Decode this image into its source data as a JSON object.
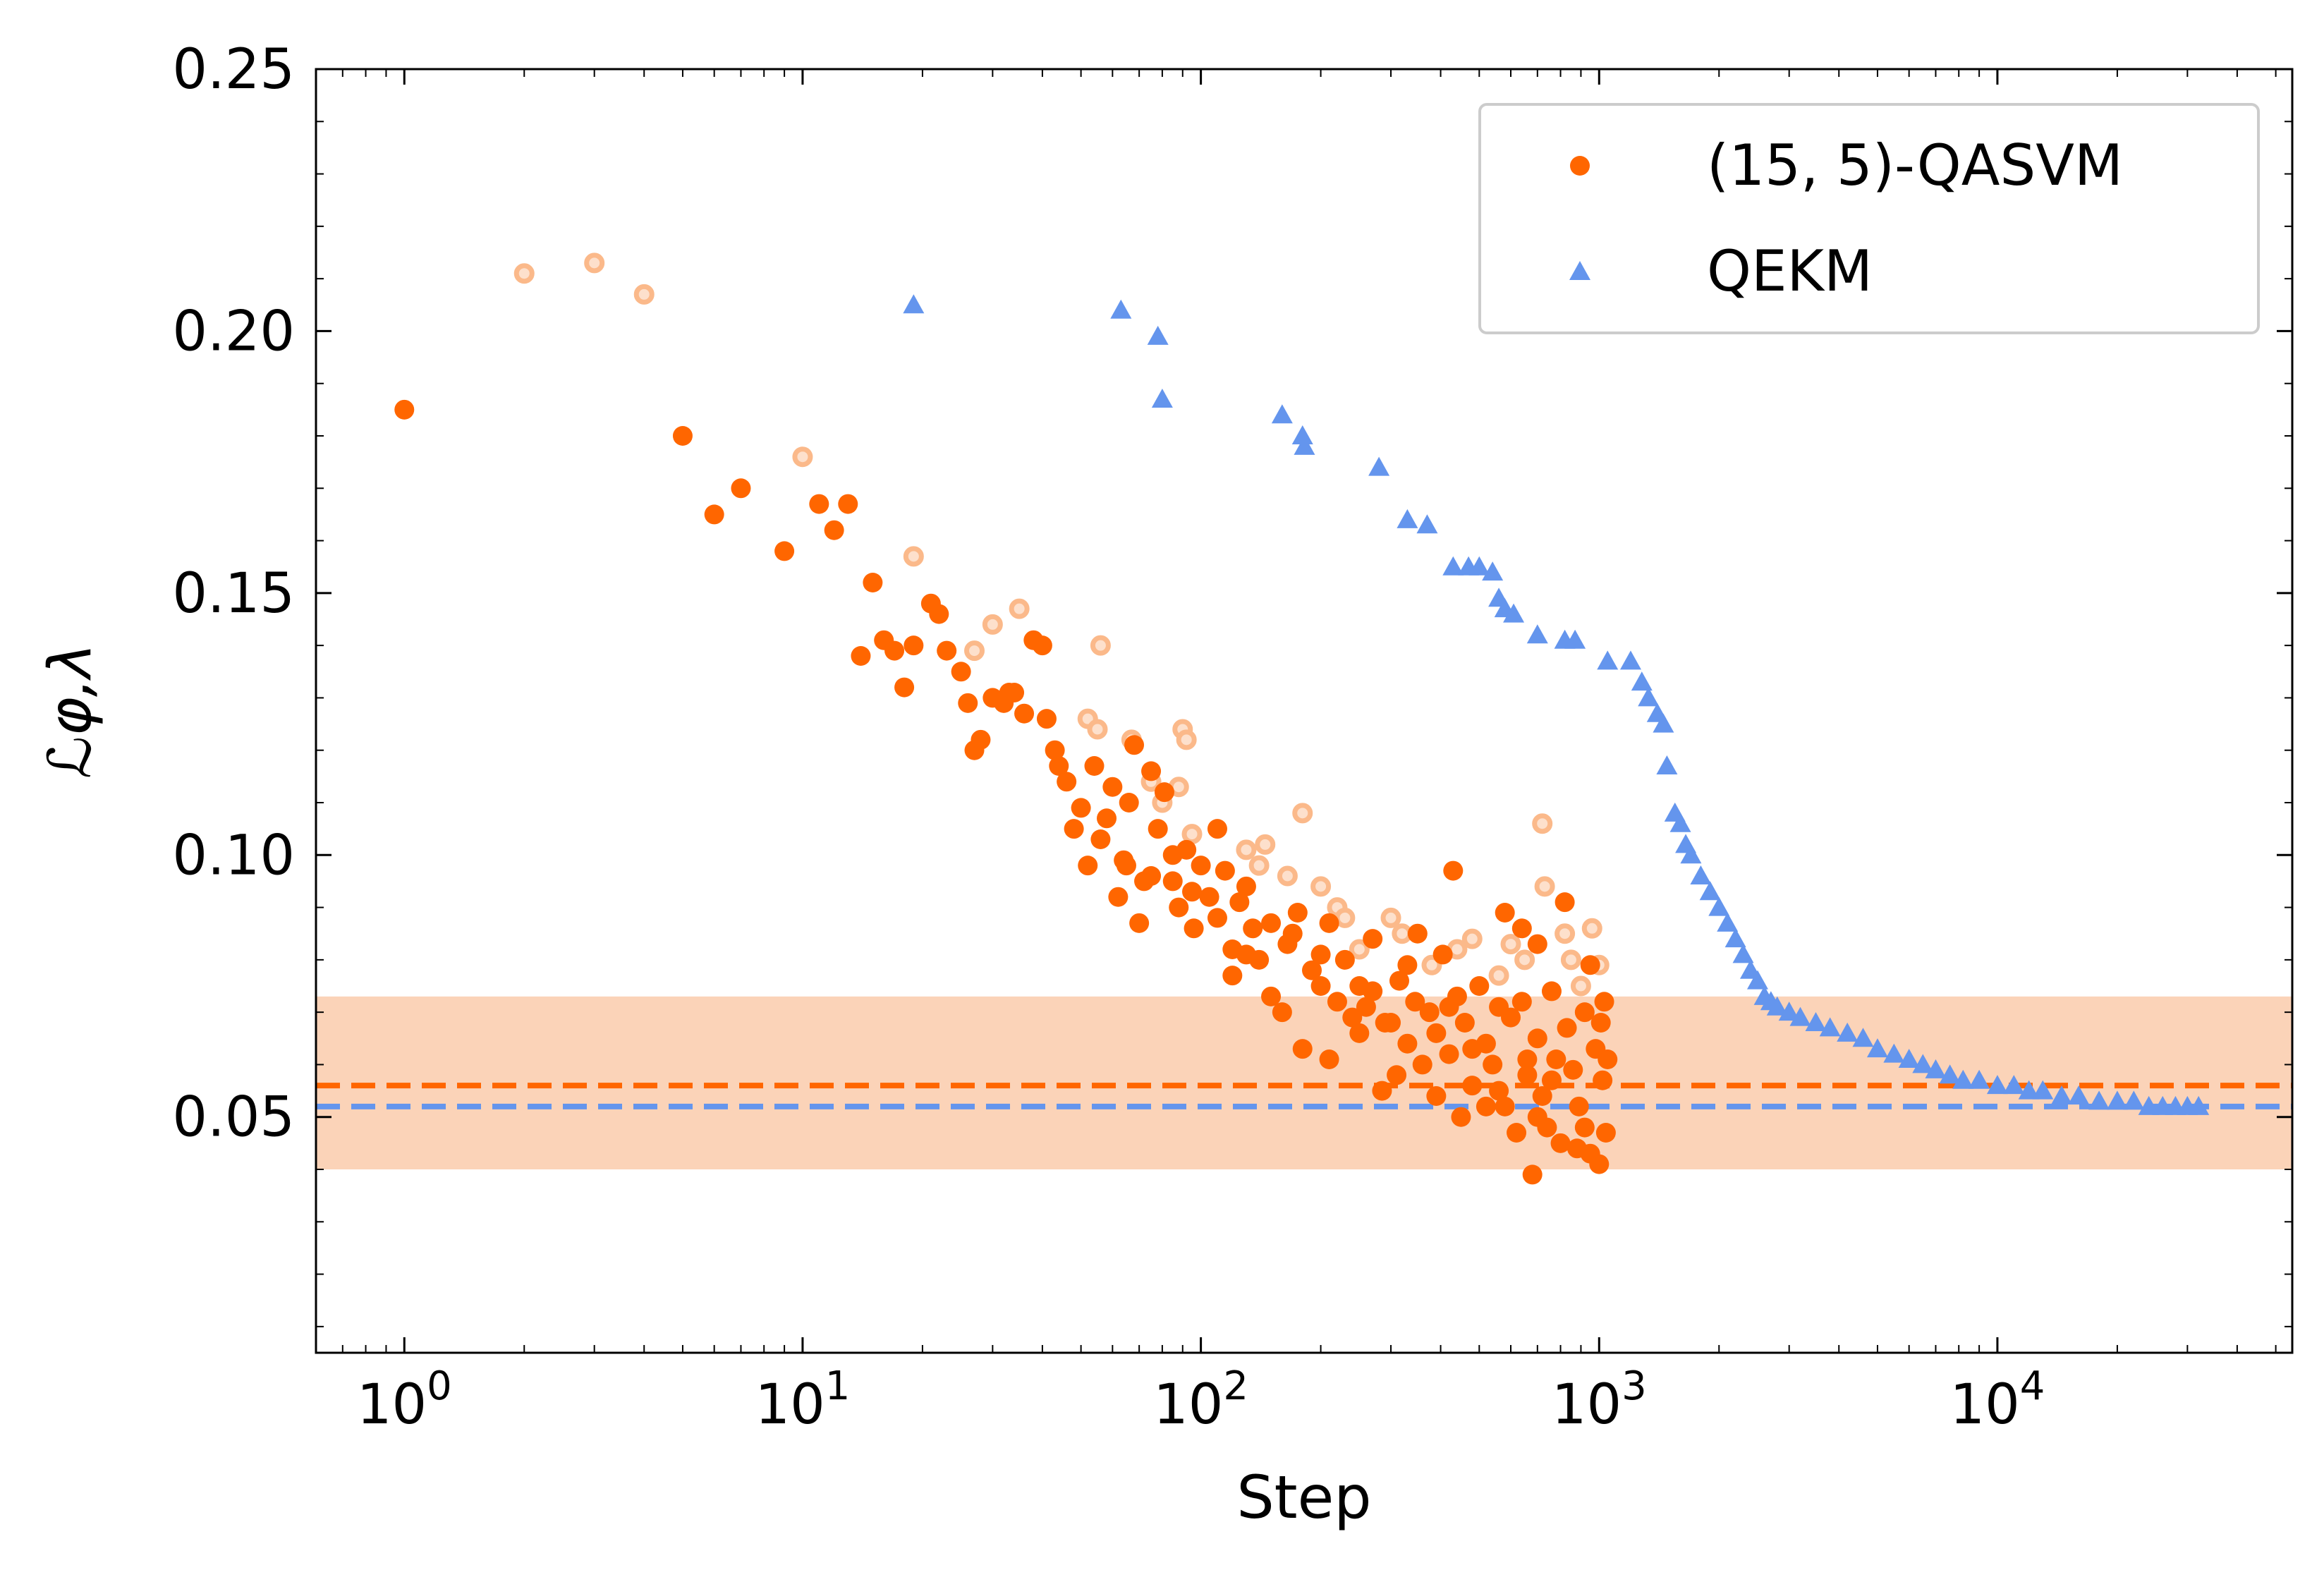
{
  "chart_data": {
    "type": "scatter",
    "title": "",
    "xlabel": "Step",
    "ylabel": "ℒφ,λ",
    "xscale": "log",
    "xlim": [
      0.6,
      55000
    ],
    "ylim": [
      0.005,
      0.25
    ],
    "grid": false,
    "legend_position": "top-right",
    "yticks": [
      {
        "value": 0.05,
        "label": "0.05"
      },
      {
        "value": 0.1,
        "label": "0.10"
      },
      {
        "value": 0.15,
        "label": "0.15"
      },
      {
        "value": 0.2,
        "label": "0.20"
      },
      {
        "value": 0.25,
        "label": "0.25"
      }
    ],
    "xticks": [
      {
        "value": 1,
        "base": "10",
        "exp": "0"
      },
      {
        "value": 10,
        "base": "10",
        "exp": "1"
      },
      {
        "value": 100,
        "base": "10",
        "exp": "2"
      },
      {
        "value": 1000,
        "base": "10",
        "exp": "3"
      },
      {
        "value": 10000,
        "base": "10",
        "exp": "4"
      }
    ],
    "band": {
      "y0": 0.04,
      "y1": 0.073,
      "color": "#fbd3b8"
    },
    "hlines": [
      {
        "y": 0.056,
        "color": "#ff6600",
        "style": "dashed"
      },
      {
        "y": 0.052,
        "color": "#6495ed",
        "style": "dashed"
      }
    ],
    "series": [
      {
        "name": "(15, 5)-QASVM",
        "marker": "circle",
        "color": "#ff6600",
        "points": [
          [
            1,
            0.185
          ],
          [
            5,
            0.18
          ],
          [
            6,
            0.165
          ],
          [
            7,
            0.17
          ],
          [
            9,
            0.158
          ],
          [
            11,
            0.167
          ],
          [
            12,
            0.162
          ],
          [
            13,
            0.167
          ],
          [
            14,
            0.138
          ],
          [
            15,
            0.152
          ],
          [
            16,
            0.141
          ],
          [
            17,
            0.139
          ],
          [
            18,
            0.132
          ],
          [
            19,
            0.14
          ],
          [
            21,
            0.148
          ],
          [
            22,
            0.146
          ],
          [
            23,
            0.139
          ],
          [
            25,
            0.135
          ],
          [
            26,
            0.129
          ],
          [
            27,
            0.12
          ],
          [
            28,
            0.122
          ],
          [
            30,
            0.13
          ],
          [
            32,
            0.129
          ],
          [
            33,
            0.131
          ],
          [
            34,
            0.131
          ],
          [
            36,
            0.127
          ],
          [
            38,
            0.141
          ],
          [
            40,
            0.14
          ],
          [
            41,
            0.126
          ],
          [
            43,
            0.12
          ],
          [
            44,
            0.117
          ],
          [
            46,
            0.114
          ],
          [
            48,
            0.105
          ],
          [
            50,
            0.109
          ],
          [
            52,
            0.098
          ],
          [
            54,
            0.117
          ],
          [
            56,
            0.103
          ],
          [
            58,
            0.107
          ],
          [
            60,
            0.113
          ],
          [
            62,
            0.092
          ],
          [
            64,
            0.099
          ],
          [
            66,
            0.11
          ],
          [
            68,
            0.121
          ],
          [
            70,
            0.087
          ],
          [
            72,
            0.095
          ],
          [
            75,
            0.116
          ],
          [
            78,
            0.105
          ],
          [
            81,
            0.112
          ],
          [
            85,
            0.095
          ],
          [
            88,
            0.09
          ],
          [
            92,
            0.101
          ],
          [
            96,
            0.086
          ],
          [
            100,
            0.098
          ],
          [
            105,
            0.092
          ],
          [
            110,
            0.105
          ],
          [
            115,
            0.097
          ],
          [
            120,
            0.082
          ],
          [
            125,
            0.091
          ],
          [
            130,
            0.094
          ],
          [
            140,
            0.08
          ],
          [
            150,
            0.087
          ],
          [
            160,
            0.07
          ],
          [
            170,
            0.085
          ],
          [
            180,
            0.063
          ],
          [
            190,
            0.078
          ],
          [
            200,
            0.075
          ],
          [
            210,
            0.061
          ],
          [
            220,
            0.072
          ],
          [
            230,
            0.08
          ],
          [
            240,
            0.069
          ],
          [
            250,
            0.066
          ],
          [
            260,
            0.071
          ],
          [
            270,
            0.074
          ],
          [
            285,
            0.055
          ],
          [
            300,
            0.068
          ],
          [
            315,
            0.076
          ],
          [
            330,
            0.064
          ],
          [
            345,
            0.072
          ],
          [
            360,
            0.06
          ],
          [
            375,
            0.07
          ],
          [
            390,
            0.066
          ],
          [
            405,
            0.081
          ],
          [
            420,
            0.062
          ],
          [
            440,
            0.073
          ],
          [
            460,
            0.068
          ],
          [
            480,
            0.056
          ],
          [
            500,
            0.075
          ],
          [
            520,
            0.064
          ],
          [
            540,
            0.06
          ],
          [
            560,
            0.071
          ],
          [
            580,
            0.052
          ],
          [
            600,
            0.069
          ],
          [
            620,
            0.047
          ],
          [
            640,
            0.072
          ],
          [
            660,
            0.058
          ],
          [
            680,
            0.039
          ],
          [
            700,
            0.065
          ],
          [
            720,
            0.054
          ],
          [
            740,
            0.048
          ],
          [
            760,
            0.074
          ],
          [
            780,
            0.061
          ],
          [
            800,
            0.045
          ],
          [
            830,
            0.067
          ],
          [
            860,
            0.059
          ],
          [
            890,
            0.052
          ],
          [
            920,
            0.07
          ],
          [
            950,
            0.043
          ],
          [
            980,
            0.063
          ],
          [
            1000,
            0.041
          ],
          [
            1010,
            0.068
          ],
          [
            1020,
            0.057
          ],
          [
            1030,
            0.072
          ],
          [
            1040,
            0.047
          ],
          [
            1050,
            0.061
          ],
          [
            430,
            0.097
          ],
          [
            580,
            0.089
          ],
          [
            640,
            0.086
          ],
          [
            700,
            0.083
          ],
          [
            820,
            0.091
          ],
          [
            950,
            0.079
          ],
          [
            350,
            0.085
          ],
          [
            270,
            0.084
          ],
          [
            210,
            0.087
          ],
          [
            165,
            0.083
          ],
          [
            135,
            0.086
          ],
          [
            120,
            0.077
          ],
          [
            310,
            0.058
          ],
          [
            390,
            0.054
          ],
          [
            450,
            0.05
          ],
          [
            520,
            0.052
          ],
          [
            560,
            0.055
          ],
          [
            700,
            0.05
          ],
          [
            880,
            0.044
          ],
          [
            920,
            0.048
          ],
          [
            760,
            0.057
          ],
          [
            660,
            0.061
          ],
          [
            480,
            0.063
          ],
          [
            420,
            0.071
          ],
          [
            330,
            0.079
          ],
          [
            290,
            0.068
          ],
          [
            250,
            0.075
          ],
          [
            200,
            0.081
          ],
          [
            175,
            0.089
          ],
          [
            150,
            0.073
          ],
          [
            130,
            0.081
          ],
          [
            110,
            0.088
          ],
          [
            95,
            0.093
          ],
          [
            85,
            0.1
          ],
          [
            75,
            0.096
          ],
          [
            65,
            0.098
          ]
        ]
      },
      {
        "name": "QEKM",
        "marker": "triangle",
        "color": "#6495ed",
        "points": [
          [
            19,
            0.205
          ],
          [
            63,
            0.204
          ],
          [
            78,
            0.199
          ],
          [
            80,
            0.187
          ],
          [
            160,
            0.184
          ],
          [
            180,
            0.18
          ],
          [
            182,
            0.178
          ],
          [
            280,
            0.174
          ],
          [
            330,
            0.164
          ],
          [
            370,
            0.163
          ],
          [
            430,
            0.155
          ],
          [
            470,
            0.155
          ],
          [
            500,
            0.155
          ],
          [
            540,
            0.154
          ],
          [
            560,
            0.149
          ],
          [
            580,
            0.147
          ],
          [
            610,
            0.146
          ],
          [
            700,
            0.142
          ],
          [
            820,
            0.141
          ],
          [
            870,
            0.141
          ],
          [
            1050,
            0.137
          ],
          [
            1200,
            0.137
          ],
          [
            1280,
            0.133
          ],
          [
            1330,
            0.13
          ],
          [
            1400,
            0.127
          ],
          [
            1450,
            0.125
          ],
          [
            1480,
            0.117
          ],
          [
            1550,
            0.108
          ],
          [
            1600,
            0.106
          ],
          [
            1650,
            0.102
          ],
          [
            1700,
            0.1
          ],
          [
            1800,
            0.096
          ],
          [
            1900,
            0.093
          ],
          [
            2000,
            0.09
          ],
          [
            2100,
            0.087
          ],
          [
            2200,
            0.084
          ],
          [
            2300,
            0.081
          ],
          [
            2400,
            0.078
          ],
          [
            2500,
            0.076
          ],
          [
            2600,
            0.073
          ],
          [
            2700,
            0.072
          ],
          [
            2800,
            0.071
          ],
          [
            3000,
            0.07
          ],
          [
            3200,
            0.069
          ],
          [
            3500,
            0.068
          ],
          [
            3800,
            0.067
          ],
          [
            4200,
            0.066
          ],
          [
            4600,
            0.065
          ],
          [
            5000,
            0.063
          ],
          [
            5500,
            0.062
          ],
          [
            6000,
            0.061
          ],
          [
            6500,
            0.06
          ],
          [
            7000,
            0.059
          ],
          [
            7600,
            0.058
          ],
          [
            8200,
            0.057
          ],
          [
            9000,
            0.057
          ],
          [
            10000,
            0.056
          ],
          [
            11000,
            0.056
          ],
          [
            12000,
            0.055
          ],
          [
            13000,
            0.055
          ],
          [
            14500,
            0.054
          ],
          [
            16000,
            0.054
          ],
          [
            18000,
            0.053
          ],
          [
            20000,
            0.053
          ],
          [
            22000,
            0.053
          ],
          [
            24000,
            0.052
          ],
          [
            26000,
            0.052
          ],
          [
            28000,
            0.052
          ],
          [
            30000,
            0.052
          ],
          [
            32000,
            0.052
          ]
        ]
      },
      {
        "name": "",
        "marker": "ring",
        "color": "#fbb98a",
        "points": [
          [
            2,
            0.211
          ],
          [
            3,
            0.213
          ],
          [
            4,
            0.207
          ],
          [
            10,
            0.176
          ],
          [
            19,
            0.157
          ],
          [
            27,
            0.139
          ],
          [
            30,
            0.144
          ],
          [
            35,
            0.147
          ],
          [
            56,
            0.14
          ],
          [
            52,
            0.126
          ],
          [
            55,
            0.124
          ],
          [
            67,
            0.122
          ],
          [
            75,
            0.114
          ],
          [
            80,
            0.11
          ],
          [
            88,
            0.113
          ],
          [
            90,
            0.124
          ],
          [
            92,
            0.122
          ],
          [
            95,
            0.104
          ],
          [
            130,
            0.101
          ],
          [
            140,
            0.098
          ],
          [
            145,
            0.102
          ],
          [
            165,
            0.096
          ],
          [
            180,
            0.108
          ],
          [
            200,
            0.094
          ],
          [
            220,
            0.09
          ],
          [
            230,
            0.088
          ],
          [
            300,
            0.088
          ],
          [
            320,
            0.085
          ],
          [
            480,
            0.084
          ],
          [
            600,
            0.083
          ],
          [
            650,
            0.08
          ],
          [
            720,
            0.106
          ],
          [
            730,
            0.094
          ],
          [
            820,
            0.085
          ],
          [
            850,
            0.08
          ],
          [
            960,
            0.086
          ],
          [
            250,
            0.082
          ],
          [
            380,
            0.079
          ],
          [
            440,
            0.082
          ],
          [
            560,
            0.077
          ],
          [
            900,
            0.075
          ],
          [
            1000,
            0.079
          ]
        ]
      }
    ]
  }
}
